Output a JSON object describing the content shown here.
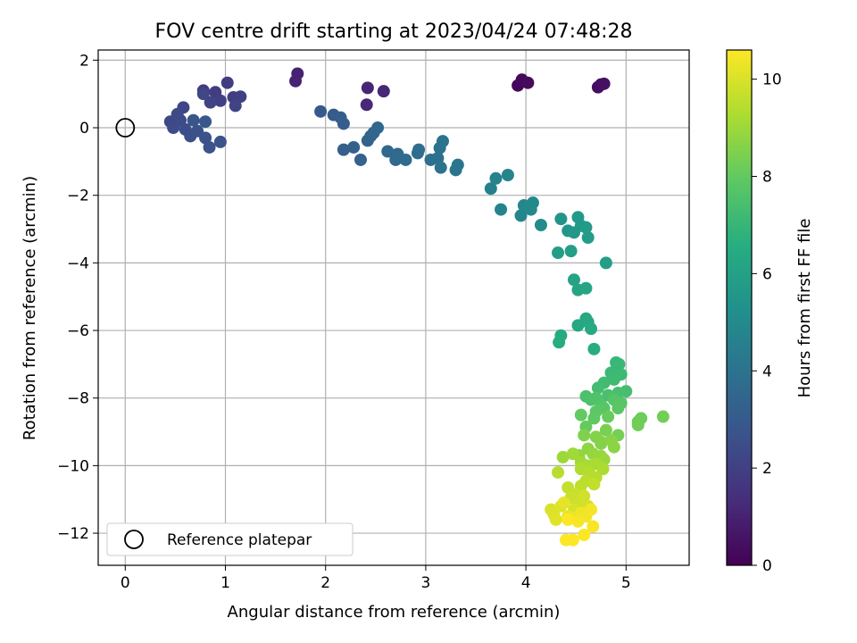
{
  "chart_data": {
    "type": "scatter",
    "title": "FOV centre drift starting at 2023/04/24 07:48:28",
    "xlabel": "Angular distance from reference (arcmin)",
    "ylabel": "Rotation from reference (arcmin)",
    "xlim": [
      -0.27,
      5.63
    ],
    "ylim": [
      -12.95,
      2.3
    ],
    "xticks": [
      0,
      1,
      2,
      3,
      4,
      5
    ],
    "yticks": [
      2,
      0,
      -2,
      -4,
      -6,
      -8,
      -10,
      -12
    ],
    "grid": true,
    "colorbar": {
      "label": "Hours from first FF file",
      "range": [
        0,
        10.6
      ],
      "ticks": [
        0,
        2,
        4,
        6,
        8,
        10
      ],
      "colormap": "viridis"
    },
    "legend": {
      "position": "lower-left",
      "entries": [
        {
          "label": "Reference platepar",
          "marker": "open-circle"
        }
      ]
    },
    "reference_point": {
      "x": 0,
      "y": 0
    },
    "points": [
      [
        3.92,
        1.25,
        0.2
      ],
      [
        3.96,
        1.42,
        0.25
      ],
      [
        4.02,
        1.33,
        0.3
      ],
      [
        4.72,
        1.2,
        0.35
      ],
      [
        4.75,
        1.28,
        0.4
      ],
      [
        4.78,
        1.3,
        0.45
      ],
      [
        1.72,
        1.6,
        1.0
      ],
      [
        1.7,
        1.38,
        1.05
      ],
      [
        2.42,
        1.18,
        1.1
      ],
      [
        2.58,
        1.08,
        1.15
      ],
      [
        2.41,
        0.68,
        1.2
      ],
      [
        0.78,
        1.1,
        1.8
      ],
      [
        0.9,
        1.05,
        1.85
      ],
      [
        1.02,
        1.33,
        1.9
      ],
      [
        1.08,
        0.9,
        1.95
      ],
      [
        1.15,
        0.92,
        2.0
      ],
      [
        0.95,
        0.8,
        2.05
      ],
      [
        0.85,
        0.75,
        2.1
      ],
      [
        1.1,
        0.65,
        2.15
      ],
      [
        0.58,
        0.6,
        2.2
      ],
      [
        0.78,
        1.0,
        2.25
      ],
      [
        0.45,
        0.18,
        2.3
      ],
      [
        0.52,
        0.4,
        2.35
      ],
      [
        0.55,
        0.22,
        2.4
      ],
      [
        0.48,
        0.0,
        2.45
      ],
      [
        0.6,
        -0.05,
        2.5
      ],
      [
        0.65,
        -0.25,
        2.55
      ],
      [
        0.72,
        -0.1,
        2.6
      ],
      [
        0.8,
        -0.3,
        2.65
      ],
      [
        0.84,
        -0.58,
        2.7
      ],
      [
        0.95,
        -0.42,
        2.75
      ],
      [
        0.68,
        0.22,
        2.8
      ],
      [
        0.8,
        0.18,
        2.85
      ],
      [
        1.95,
        0.48,
        3.0
      ],
      [
        2.08,
        0.38,
        3.05
      ],
      [
        2.15,
        0.3,
        3.1
      ],
      [
        2.18,
        0.12,
        3.15
      ],
      [
        2.18,
        -0.65,
        3.2
      ],
      [
        2.28,
        -0.58,
        3.25
      ],
      [
        2.35,
        -0.95,
        3.3
      ],
      [
        2.42,
        -0.38,
        3.35
      ],
      [
        2.45,
        -0.25,
        3.4
      ],
      [
        2.48,
        -0.15,
        3.45
      ],
      [
        2.52,
        0.0,
        3.5
      ],
      [
        2.62,
        -0.7,
        3.55
      ],
      [
        2.7,
        -0.95,
        3.6
      ],
      [
        2.72,
        -0.78,
        3.65
      ],
      [
        2.8,
        -0.95,
        3.7
      ],
      [
        2.92,
        -0.75,
        3.75
      ],
      [
        2.93,
        -0.65,
        3.8
      ],
      [
        3.05,
        -0.95,
        3.85
      ],
      [
        3.12,
        -0.9,
        3.9
      ],
      [
        3.14,
        -0.6,
        3.95
      ],
      [
        3.15,
        -1.18,
        4.0
      ],
      [
        3.17,
        -0.4,
        4.05
      ],
      [
        3.3,
        -1.25,
        4.1
      ],
      [
        3.32,
        -1.1,
        4.15
      ],
      [
        3.65,
        -1.8,
        4.6
      ],
      [
        3.7,
        -1.5,
        4.65
      ],
      [
        3.75,
        -2.42,
        4.7
      ],
      [
        3.82,
        -1.4,
        4.75
      ],
      [
        3.95,
        -2.6,
        4.8
      ],
      [
        3.98,
        -2.3,
        4.85
      ],
      [
        4.05,
        -2.42,
        4.9
      ],
      [
        4.03,
        -2.35,
        4.95
      ],
      [
        4.07,
        -2.22,
        5.0
      ],
      [
        4.15,
        -2.88,
        5.05
      ],
      [
        4.35,
        -2.7,
        5.5
      ],
      [
        4.42,
        -3.05,
        5.55
      ],
      [
        4.48,
        -3.1,
        5.6
      ],
      [
        4.52,
        -2.65,
        5.65
      ],
      [
        4.55,
        -2.9,
        5.7
      ],
      [
        4.6,
        -2.95,
        5.75
      ],
      [
        4.62,
        -3.25,
        5.8
      ],
      [
        4.32,
        -3.7,
        5.85
      ],
      [
        4.45,
        -3.65,
        5.9
      ],
      [
        4.8,
        -4.0,
        5.95
      ],
      [
        4.48,
        -4.5,
        6.1
      ],
      [
        4.52,
        -4.8,
        6.15
      ],
      [
        4.6,
        -4.75,
        6.2
      ],
      [
        4.52,
        -5.85,
        6.25
      ],
      [
        4.6,
        -5.65,
        6.3
      ],
      [
        4.62,
        -5.75,
        6.35
      ],
      [
        4.65,
        -5.95,
        6.4
      ],
      [
        4.35,
        -6.15,
        6.45
      ],
      [
        4.33,
        -6.35,
        6.5
      ],
      [
        4.68,
        -6.55,
        6.55
      ],
      [
        4.9,
        -6.95,
        7.0
      ],
      [
        4.93,
        -7.0,
        7.05
      ],
      [
        4.85,
        -7.25,
        7.1
      ],
      [
        4.95,
        -7.3,
        7.15
      ],
      [
        4.88,
        -7.45,
        7.2
      ],
      [
        4.78,
        -7.55,
        7.25
      ],
      [
        4.72,
        -7.7,
        7.3
      ],
      [
        5.0,
        -7.8,
        7.35
      ],
      [
        4.92,
        -7.85,
        7.4
      ],
      [
        4.82,
        -7.92,
        7.45
      ],
      [
        4.6,
        -7.95,
        7.5
      ],
      [
        4.65,
        -8.05,
        7.55
      ],
      [
        4.7,
        -8.0,
        7.6
      ],
      [
        4.75,
        -8.2,
        7.65
      ],
      [
        4.88,
        -8.05,
        7.7
      ],
      [
        4.95,
        -8.15,
        7.75
      ],
      [
        4.78,
        -8.3,
        7.8
      ],
      [
        4.92,
        -8.3,
        7.85
      ],
      [
        4.7,
        -8.4,
        7.9
      ],
      [
        4.68,
        -8.6,
        7.95
      ],
      [
        4.55,
        -8.5,
        8.0
      ],
      [
        4.6,
        -8.85,
        8.05
      ],
      [
        4.82,
        -8.55,
        8.1
      ],
      [
        5.12,
        -8.7,
        8.15
      ],
      [
        5.15,
        -8.6,
        8.2
      ],
      [
        5.12,
        -8.8,
        8.25
      ],
      [
        5.37,
        -8.55,
        8.3
      ],
      [
        4.92,
        -9.1,
        8.35
      ],
      [
        4.8,
        -8.95,
        8.4
      ],
      [
        4.75,
        -9.3,
        8.45
      ],
      [
        4.58,
        -9.1,
        8.5
      ],
      [
        4.7,
        -9.15,
        8.55
      ],
      [
        4.75,
        -9.35,
        8.6
      ],
      [
        4.85,
        -9.25,
        8.65
      ],
      [
        4.88,
        -9.45,
        8.7
      ],
      [
        4.62,
        -9.5,
        8.75
      ],
      [
        4.53,
        -9.7,
        8.8
      ],
      [
        4.67,
        -9.65,
        8.85
      ],
      [
        4.75,
        -9.72,
        8.9
      ],
      [
        4.78,
        -9.82,
        8.95
      ],
      [
        4.37,
        -9.75,
        9.0
      ],
      [
        4.47,
        -9.65,
        9.05
      ],
      [
        4.55,
        -9.9,
        9.1
      ],
      [
        4.62,
        -10.0,
        9.15
      ],
      [
        4.7,
        -9.95,
        9.2
      ],
      [
        4.77,
        -10.1,
        9.25
      ],
      [
        4.55,
        -10.1,
        9.3
      ],
      [
        4.63,
        -10.2,
        9.35
      ],
      [
        4.7,
        -10.35,
        9.4
      ],
      [
        4.32,
        -10.2,
        9.45
      ],
      [
        4.6,
        -10.45,
        9.5
      ],
      [
        4.55,
        -10.6,
        9.55
      ],
      [
        4.68,
        -10.55,
        9.6
      ],
      [
        4.42,
        -10.65,
        9.65
      ],
      [
        4.5,
        -10.85,
        9.7
      ],
      [
        4.45,
        -10.95,
        9.75
      ],
      [
        4.52,
        -11.1,
        9.8
      ],
      [
        4.58,
        -10.9,
        9.85
      ],
      [
        4.62,
        -11.2,
        9.9
      ],
      [
        4.48,
        -11.3,
        9.95
      ],
      [
        4.25,
        -11.3,
        10.0
      ],
      [
        4.28,
        -11.45,
        10.05
      ],
      [
        4.35,
        -11.2,
        10.1
      ],
      [
        4.3,
        -11.6,
        10.15
      ],
      [
        4.38,
        -11.1,
        10.2
      ],
      [
        4.42,
        -11.5,
        10.25
      ],
      [
        4.48,
        -11.55,
        10.3
      ],
      [
        4.55,
        -11.4,
        10.35
      ],
      [
        4.6,
        -11.5,
        10.4
      ],
      [
        4.65,
        -11.3,
        10.45
      ],
      [
        4.52,
        -11.65,
        10.5
      ],
      [
        4.67,
        -11.8,
        10.52
      ],
      [
        4.58,
        -12.05,
        10.55
      ],
      [
        4.4,
        -12.2,
        10.56
      ],
      [
        4.47,
        -12.2,
        10.58
      ],
      [
        4.42,
        -11.6,
        10.6
      ]
    ]
  }
}
